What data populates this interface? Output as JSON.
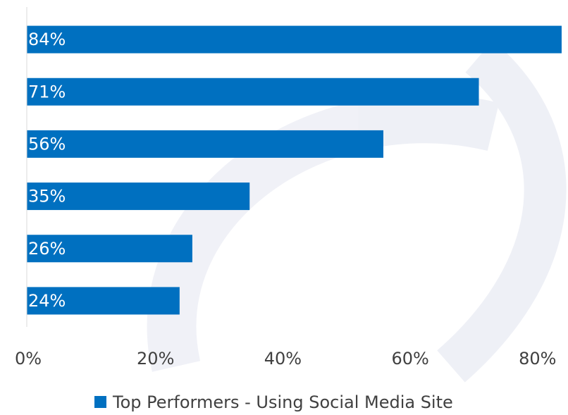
{
  "chart_data": {
    "type": "bar",
    "orientation": "horizontal",
    "categories": [
      null,
      null,
      null,
      null,
      null,
      null
    ],
    "series": [
      {
        "name": "Top Performers - Using Social Media Site",
        "color": "#0070c0",
        "values": [
          84,
          71,
          56,
          35,
          26,
          24
        ],
        "value_labels": [
          "84%",
          "71%",
          "56%",
          "35%",
          "26%",
          "24%"
        ]
      }
    ],
    "xlim": [
      0,
      85
    ],
    "xticks": [
      {
        "value": 0,
        "label": "0%"
      },
      {
        "value": 20,
        "label": "20%"
      },
      {
        "value": 40,
        "label": "40%"
      },
      {
        "value": 60,
        "label": "60%"
      },
      {
        "value": 80,
        "label": "80%"
      }
    ],
    "legend": "bottom"
  }
}
